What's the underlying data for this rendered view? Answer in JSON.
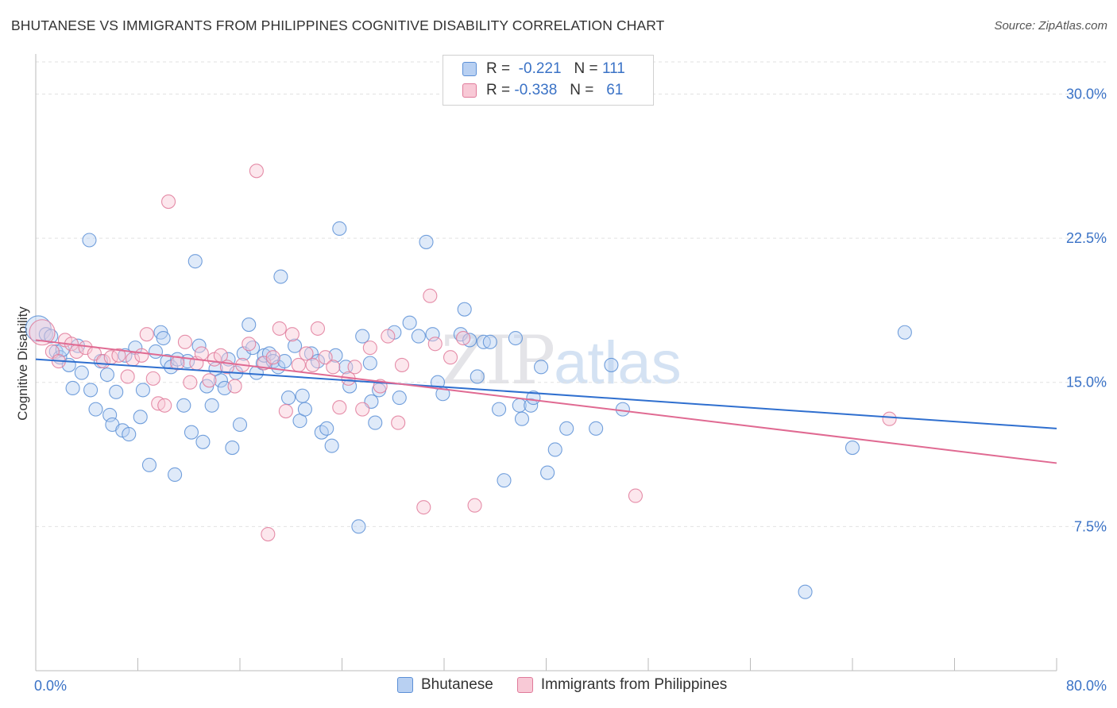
{
  "title": "BHUTANESE VS IMMIGRANTS FROM PHILIPPINES COGNITIVE DISABILITY CORRELATION CHART",
  "source": "Source: ZipAtlas.com",
  "watermark": {
    "zip": "ZIP",
    "atlas": "atlas"
  },
  "legend": {
    "r_label": "R =",
    "n_label": "N =",
    "rows": [
      {
        "r": "-0.221",
        "n": "111",
        "color": "#5b8fd6",
        "fill": "#b8d0f2"
      },
      {
        "r": "-0.338",
        "n": "61",
        "color": "#e07a9a",
        "fill": "#f8c9d6"
      }
    ]
  },
  "chart_data": {
    "type": "scatter",
    "title": "BHUTANESE VS IMMIGRANTS FROM PHILIPPINES COGNITIVE DISABILITY CORRELATION CHART",
    "xlabel": "",
    "ylabel": "Cognitive Disability",
    "xlim": [
      0,
      80
    ],
    "ylim": [
      0,
      32
    ],
    "x_tick_labels": [
      "0.0%",
      "80.0%"
    ],
    "y_ticks": [
      7.5,
      15.0,
      22.5,
      30.0
    ],
    "y_tick_labels": [
      "7.5%",
      "15.0%",
      "22.5%",
      "30.0%"
    ],
    "grid": true,
    "legend_position": "top-center",
    "series": [
      {
        "name": "Bhutanese",
        "color": "#5b8fd6",
        "fill": "#b8d0f2",
        "trend": {
          "x": [
            0,
            80
          ],
          "y": [
            16.2,
            12.6
          ]
        },
        "points": [
          [
            0.2,
            17.8
          ],
          [
            0.8,
            17.5
          ],
          [
            1.2,
            17.4
          ],
          [
            1.6,
            16.6
          ],
          [
            1.9,
            16.3
          ],
          [
            2.1,
            16.7
          ],
          [
            2.6,
            15.9
          ],
          [
            2.9,
            14.7
          ],
          [
            3.3,
            16.9
          ],
          [
            3.6,
            15.5
          ],
          [
            4.2,
            22.4
          ],
          [
            4.3,
            14.6
          ],
          [
            4.7,
            13.6
          ],
          [
            5.1,
            16.1
          ],
          [
            5.6,
            15.4
          ],
          [
            5.8,
            13.3
          ],
          [
            6.0,
            12.8
          ],
          [
            6.3,
            14.5
          ],
          [
            6.8,
            12.5
          ],
          [
            7.0,
            16.4
          ],
          [
            7.3,
            12.3
          ],
          [
            7.8,
            16.8
          ],
          [
            8.2,
            13.2
          ],
          [
            8.4,
            14.6
          ],
          [
            8.9,
            10.7
          ],
          [
            9.4,
            16.6
          ],
          [
            9.8,
            17.6
          ],
          [
            10.0,
            17.3
          ],
          [
            10.3,
            16.1
          ],
          [
            10.6,
            15.8
          ],
          [
            10.9,
            10.2
          ],
          [
            11.1,
            16.2
          ],
          [
            11.6,
            13.8
          ],
          [
            11.9,
            16.1
          ],
          [
            12.2,
            12.4
          ],
          [
            12.5,
            21.3
          ],
          [
            12.8,
            16.9
          ],
          [
            13.1,
            11.9
          ],
          [
            13.4,
            14.8
          ],
          [
            13.8,
            13.8
          ],
          [
            14.1,
            15.7
          ],
          [
            14.5,
            15.1
          ],
          [
            14.8,
            14.7
          ],
          [
            15.1,
            16.2
          ],
          [
            15.4,
            11.6
          ],
          [
            15.7,
            15.5
          ],
          [
            16.0,
            12.8
          ],
          [
            16.3,
            16.5
          ],
          [
            16.7,
            18.0
          ],
          [
            17.0,
            16.8
          ],
          [
            17.3,
            15.5
          ],
          [
            17.8,
            16.0
          ],
          [
            17.9,
            16.4
          ],
          [
            18.3,
            16.5
          ],
          [
            18.6,
            16.1
          ],
          [
            19.0,
            15.8
          ],
          [
            19.2,
            20.5
          ],
          [
            19.5,
            16.1
          ],
          [
            19.8,
            14.2
          ],
          [
            20.3,
            16.9
          ],
          [
            20.7,
            13.0
          ],
          [
            20.9,
            14.3
          ],
          [
            21.1,
            13.6
          ],
          [
            21.6,
            16.5
          ],
          [
            22.1,
            16.1
          ],
          [
            22.4,
            12.4
          ],
          [
            22.8,
            12.6
          ],
          [
            23.2,
            11.7
          ],
          [
            23.5,
            16.4
          ],
          [
            23.8,
            23.0
          ],
          [
            24.3,
            15.8
          ],
          [
            24.6,
            14.8
          ],
          [
            25.3,
            7.5
          ],
          [
            25.6,
            17.4
          ],
          [
            26.2,
            16.0
          ],
          [
            26.3,
            14.0
          ],
          [
            26.6,
            12.9
          ],
          [
            26.9,
            14.6
          ],
          [
            28.1,
            17.6
          ],
          [
            28.5,
            14.2
          ],
          [
            29.3,
            18.1
          ],
          [
            30.0,
            17.4
          ],
          [
            30.6,
            22.3
          ],
          [
            31.1,
            17.5
          ],
          [
            31.5,
            15.0
          ],
          [
            31.9,
            14.4
          ],
          [
            33.3,
            17.5
          ],
          [
            33.6,
            18.8
          ],
          [
            34.0,
            17.2
          ],
          [
            34.6,
            15.3
          ],
          [
            35.1,
            17.1
          ],
          [
            35.6,
            17.1
          ],
          [
            36.3,
            13.6
          ],
          [
            36.7,
            9.9
          ],
          [
            37.6,
            17.3
          ],
          [
            37.9,
            13.8
          ],
          [
            38.1,
            13.1
          ],
          [
            38.8,
            13.8
          ],
          [
            39.0,
            14.2
          ],
          [
            39.6,
            15.8
          ],
          [
            40.1,
            10.3
          ],
          [
            40.7,
            11.5
          ],
          [
            41.6,
            12.6
          ],
          [
            43.9,
            12.6
          ],
          [
            45.1,
            15.9
          ],
          [
            46.0,
            13.6
          ],
          [
            60.3,
            4.1
          ],
          [
            64.0,
            11.6
          ],
          [
            68.1,
            17.6
          ]
        ]
      },
      {
        "name": "Immigrants from Philippines",
        "color": "#e07a9a",
        "fill": "#f8c9d6",
        "trend": {
          "x": [
            0,
            80
          ],
          "y": [
            17.2,
            10.8
          ]
        },
        "points": [
          [
            0.5,
            17.6
          ],
          [
            1.3,
            16.6
          ],
          [
            1.8,
            16.1
          ],
          [
            2.3,
            17.2
          ],
          [
            2.8,
            17.0
          ],
          [
            3.2,
            16.6
          ],
          [
            3.9,
            16.8
          ],
          [
            4.6,
            16.5
          ],
          [
            5.3,
            16.1
          ],
          [
            5.9,
            16.3
          ],
          [
            6.5,
            16.4
          ],
          [
            7.2,
            15.3
          ],
          [
            7.6,
            16.2
          ],
          [
            8.3,
            16.4
          ],
          [
            8.7,
            17.5
          ],
          [
            9.2,
            15.2
          ],
          [
            9.6,
            13.9
          ],
          [
            10.1,
            13.8
          ],
          [
            10.4,
            24.4
          ],
          [
            11.1,
            16.0
          ],
          [
            11.7,
            17.1
          ],
          [
            12.1,
            15.0
          ],
          [
            12.6,
            16.0
          ],
          [
            13.0,
            16.5
          ],
          [
            13.6,
            15.1
          ],
          [
            14.0,
            16.2
          ],
          [
            14.5,
            16.4
          ],
          [
            15.0,
            15.8
          ],
          [
            15.6,
            14.8
          ],
          [
            16.2,
            15.9
          ],
          [
            16.7,
            17.0
          ],
          [
            17.3,
            26.0
          ],
          [
            17.9,
            16.0
          ],
          [
            18.2,
            7.1
          ],
          [
            18.6,
            16.3
          ],
          [
            19.1,
            17.8
          ],
          [
            19.6,
            13.5
          ],
          [
            20.1,
            17.5
          ],
          [
            20.6,
            15.9
          ],
          [
            21.2,
            16.5
          ],
          [
            21.7,
            15.9
          ],
          [
            22.1,
            17.8
          ],
          [
            22.7,
            16.3
          ],
          [
            23.3,
            15.8
          ],
          [
            23.8,
            13.7
          ],
          [
            24.5,
            15.2
          ],
          [
            25.0,
            15.8
          ],
          [
            25.6,
            13.6
          ],
          [
            26.2,
            16.8
          ],
          [
            27.0,
            14.8
          ],
          [
            27.6,
            17.4
          ],
          [
            28.4,
            12.9
          ],
          [
            28.7,
            15.9
          ],
          [
            30.4,
            8.5
          ],
          [
            30.9,
            19.5
          ],
          [
            31.3,
            17.0
          ],
          [
            32.5,
            16.3
          ],
          [
            33.5,
            17.3
          ],
          [
            34.4,
            8.6
          ],
          [
            47.0,
            9.1
          ],
          [
            66.9,
            13.1
          ]
        ]
      }
    ]
  }
}
